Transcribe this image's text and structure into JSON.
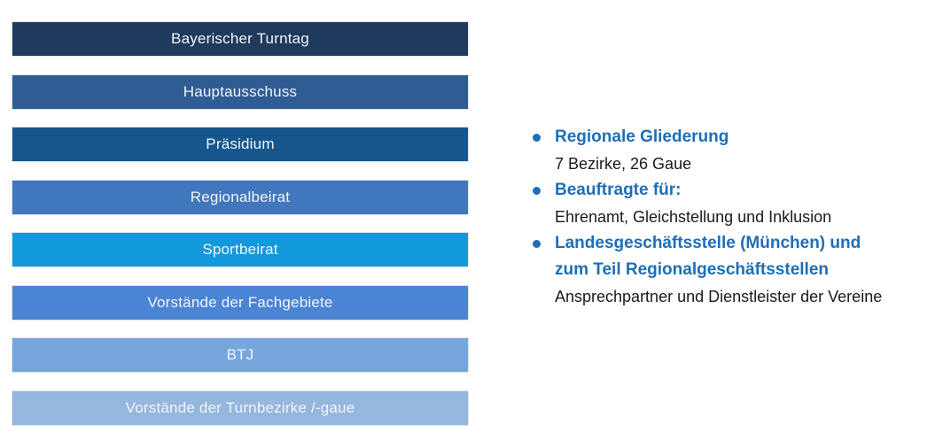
{
  "colors": {
    "background": "#ffffff",
    "accent_blue": "#1d6eb7",
    "body_text": "#1a1a1a",
    "bar_text": "#f2f5f9"
  },
  "org_chart": {
    "levels": [
      {
        "label": "Bayerischer Turntag",
        "color": "#1f3a5c"
      },
      {
        "label": "Hauptausschuss",
        "color": "#2f5c93"
      },
      {
        "label": "Präsidium",
        "color": "#16568c"
      },
      {
        "label": "Regionalbeirat",
        "color": "#4177bc"
      },
      {
        "label": "Sportbeirat",
        "color": "#1199dc"
      },
      {
        "label": "Vorstände der Fachgebiete",
        "color": "#4c84d4"
      },
      {
        "label": "BTJ",
        "color": "#76a6dd"
      },
      {
        "label": "Vorstände der Turnbezirke /-gaue",
        "color": "#95b6dd"
      }
    ]
  },
  "bullet_list": {
    "items": [
      {
        "title": "Regionale Gliederung",
        "subtitle": "7 Bezirke, 26 Gaue"
      },
      {
        "title": "Beauftragte für:",
        "subtitle": "Ehrenamt, Gleichstellung und Inklusion"
      },
      {
        "title": "Landesgeschäftsstelle (München) und\nzum Teil Regionalgeschäftsstellen",
        "subtitle": "Ansprechpartner und Dienstleister der Vereine"
      }
    ]
  }
}
